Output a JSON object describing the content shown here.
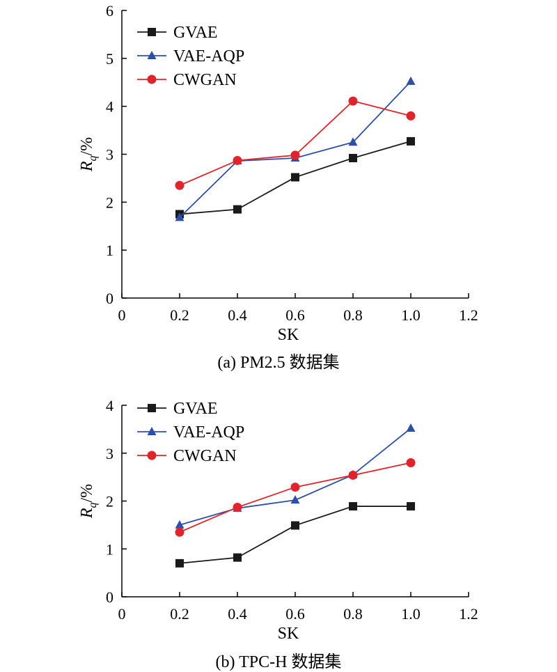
{
  "chart_data": [
    {
      "type": "line",
      "caption": "(a) PM2.5 数据集",
      "xlabel": "SK",
      "ylabel_main": "R",
      "ylabel_sub": "q",
      "ylabel_suffix": "/%",
      "xlim": [
        0,
        1.2
      ],
      "ylim": [
        0,
        6
      ],
      "xticks": [
        "0",
        "0.2",
        "0.4",
        "0.6",
        "0.8",
        "1.0",
        "1.2"
      ],
      "yticks": [
        "0",
        "1",
        "2",
        "3",
        "4",
        "5",
        "6"
      ],
      "grid": false,
      "legend_position": "top-left",
      "x": [
        0.2,
        0.4,
        0.6,
        0.8,
        1.0
      ],
      "series": [
        {
          "name": "GVAE",
          "color": "#1a1a1a",
          "marker": "square",
          "values": [
            1.75,
            1.85,
            2.52,
            2.92,
            3.27
          ]
        },
        {
          "name": "VAE-AQP",
          "color": "#2e4fa8",
          "marker": "triangle",
          "values": [
            1.68,
            2.86,
            2.92,
            3.25,
            4.52
          ]
        },
        {
          "name": "CWGAN",
          "color": "#e0242b",
          "marker": "circle",
          "values": [
            2.35,
            2.87,
            2.98,
            4.11,
            3.8
          ]
        }
      ]
    },
    {
      "type": "line",
      "caption": "(b) TPC-H 数据集",
      "xlabel": "SK",
      "ylabel_main": "R",
      "ylabel_sub": "q",
      "ylabel_suffix": "/%",
      "xlim": [
        0,
        1.2
      ],
      "ylim": [
        0,
        4
      ],
      "xticks": [
        "0",
        "0.2",
        "0.4",
        "0.6",
        "0.8",
        "1.0",
        "1.2"
      ],
      "yticks": [
        "0",
        "1",
        "2",
        "3",
        "4"
      ],
      "grid": false,
      "legend_position": "top-left",
      "x": [
        0.2,
        0.4,
        0.6,
        0.8,
        1.0
      ],
      "series": [
        {
          "name": "GVAE",
          "color": "#1a1a1a",
          "marker": "square",
          "values": [
            0.7,
            0.82,
            1.49,
            1.89,
            1.89
          ]
        },
        {
          "name": "VAE-AQP",
          "color": "#2e4fa8",
          "marker": "triangle",
          "values": [
            1.5,
            1.85,
            2.02,
            2.55,
            3.52
          ]
        },
        {
          "name": "CWGAN",
          "color": "#e0242b",
          "marker": "circle",
          "values": [
            1.35,
            1.87,
            2.29,
            2.54,
            2.8
          ]
        }
      ]
    }
  ]
}
